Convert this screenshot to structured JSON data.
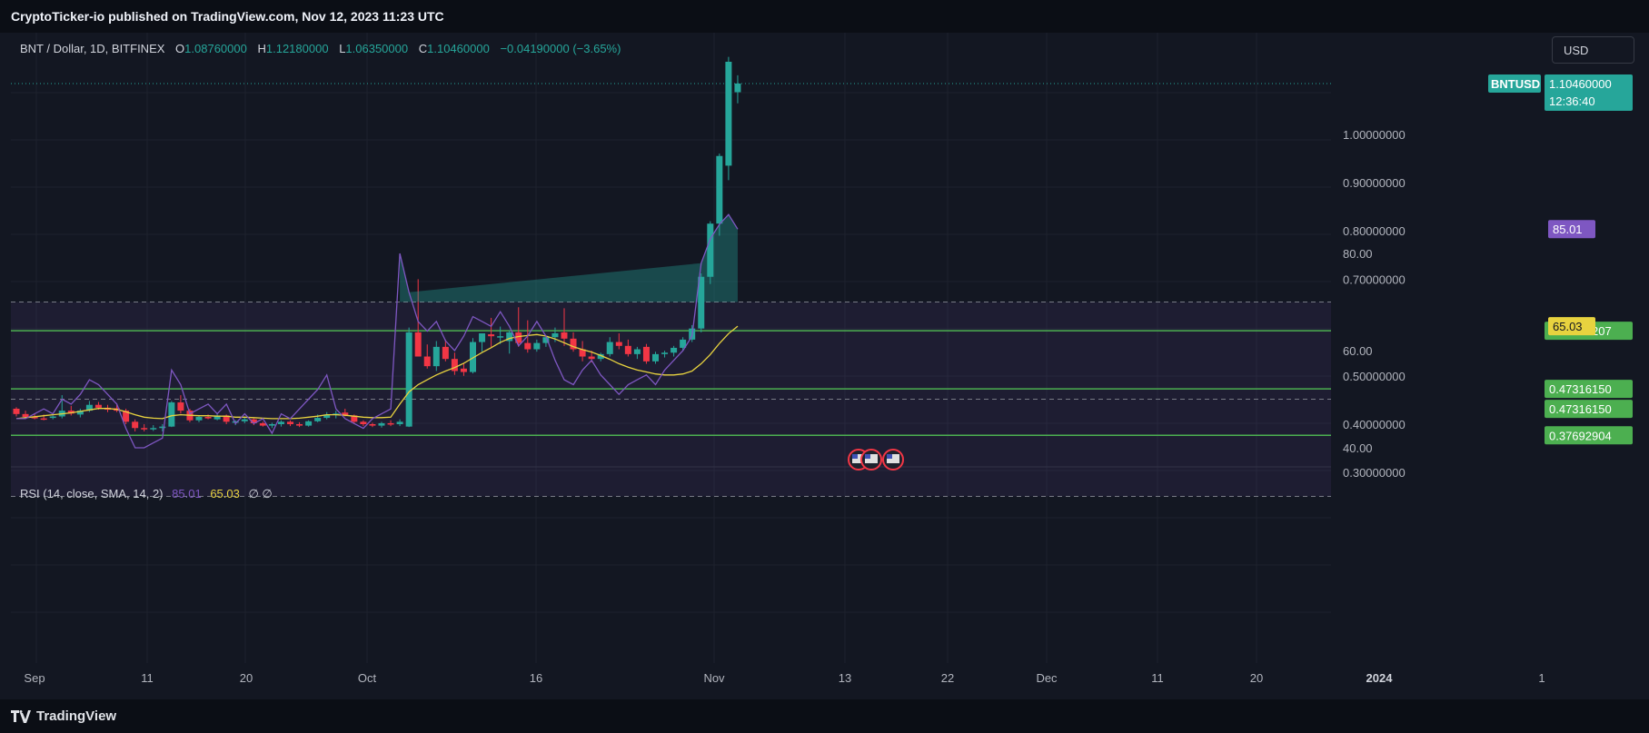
{
  "header": {
    "publisher_line": "CryptoTicker-io published on TradingView.com, Nov 12, 2023 11:23 UTC"
  },
  "footer": {
    "brand": "TradingView"
  },
  "toolbar": {
    "currency_label": "USD"
  },
  "legend": {
    "symbol": "BNT / Dollar, 1D, BITFINEX",
    "open_key": "O",
    "open": "1.08760000",
    "high_key": "H",
    "high": "1.12180000",
    "low_key": "L",
    "low": "1.06350000",
    "close_key": "C",
    "close": "1.10460000",
    "change": "−0.04190000 (−3.65%)"
  },
  "price_axis": {
    "ticks": [
      "1.00000000",
      "0.90000000",
      "0.80000000",
      "0.70000000",
      "0.50000000",
      "0.40000000",
      "0.30000000"
    ],
    "current_label": "BNTUSD",
    "current_price": "1.10460000",
    "countdown": "12:36:40",
    "level_labels": [
      "0.59345207",
      "0.47316150",
      "0.47316150",
      "0.37692904"
    ]
  },
  "rsi_panel": {
    "legend_name": "RSI (14, close, SMA, 14, 2)",
    "rsi_value": "85.01",
    "sma_value": "65.03",
    "extra": "∅ ∅",
    "axis_ticks": [
      "80.00",
      "60.00",
      "40.00"
    ]
  },
  "time_axis": {
    "labels": [
      "Sep",
      "11",
      "20",
      "Oct",
      "16",
      "Nov",
      "13",
      "22",
      "Dec",
      "11",
      "20",
      "2024",
      "1"
    ]
  },
  "colors": {
    "up": "#26a69a",
    "down": "#f23645",
    "level": "#4caf50",
    "rsi": "#7e57c2",
    "sma": "#e8d33f"
  },
  "chart_data": [
    {
      "type": "candlestick",
      "title": "BNT / Dollar, 1D, BITFINEX",
      "ylim": [
        0.3,
        1.15
      ],
      "horizontal_levels": [
        0.59345207,
        0.4731615,
        0.37692904
      ],
      "candles_ohlc": [
        [
          0.432,
          0.435,
          0.416,
          0.421
        ],
        [
          0.421,
          0.428,
          0.412,
          0.415
        ],
        [
          0.415,
          0.422,
          0.41,
          0.412
        ],
        [
          0.412,
          0.42,
          0.408,
          0.41
        ],
        [
          0.413,
          0.418,
          0.41,
          0.416
        ],
        [
          0.416,
          0.46,
          0.412,
          0.428
        ],
        [
          0.428,
          0.438,
          0.418,
          0.422
        ],
        [
          0.42,
          0.432,
          0.414,
          0.428
        ],
        [
          0.428,
          0.448,
          0.425,
          0.44
        ],
        [
          0.44,
          0.446,
          0.43,
          0.434
        ],
        [
          0.434,
          0.44,
          0.425,
          0.43
        ],
        [
          0.433,
          0.44,
          0.425,
          0.428
        ],
        [
          0.428,
          0.432,
          0.4,
          0.405
        ],
        [
          0.405,
          0.41,
          0.385,
          0.392
        ],
        [
          0.392,
          0.4,
          0.385,
          0.39
        ],
        [
          0.39,
          0.398,
          0.386,
          0.392
        ],
        [
          0.392,
          0.4,
          0.385,
          0.395
        ],
        [
          0.395,
          0.448,
          0.394,
          0.445
        ],
        [
          0.445,
          0.46,
          0.422,
          0.428
        ],
        [
          0.428,
          0.432,
          0.404,
          0.408
        ],
        [
          0.408,
          0.418,
          0.404,
          0.415
        ],
        [
          0.415,
          0.42,
          0.41,
          0.412
        ],
        [
          0.41,
          0.422,
          0.408,
          0.418
        ],
        [
          0.418,
          0.42,
          0.4,
          0.405
        ],
        [
          0.403,
          0.408,
          0.398,
          0.406
        ],
        [
          0.406,
          0.415,
          0.402,
          0.41
        ],
        [
          0.41,
          0.412,
          0.398,
          0.402
        ],
        [
          0.402,
          0.405,
          0.395,
          0.397
        ],
        [
          0.397,
          0.403,
          0.392,
          0.4
        ],
        [
          0.4,
          0.408,
          0.395,
          0.405
        ],
        [
          0.405,
          0.408,
          0.396,
          0.4
        ],
        [
          0.4,
          0.404,
          0.394,
          0.397
        ],
        [
          0.397,
          0.408,
          0.395,
          0.406
        ],
        [
          0.406,
          0.42,
          0.404,
          0.413
        ],
        [
          0.413,
          0.425,
          0.41,
          0.42
        ],
        [
          0.42,
          0.428,
          0.412,
          0.422
        ],
        [
          0.424,
          0.432,
          0.416,
          0.418
        ],
        [
          0.418,
          0.42,
          0.4,
          0.405
        ],
        [
          0.405,
          0.408,
          0.396,
          0.4
        ],
        [
          0.4,
          0.403,
          0.394,
          0.397
        ],
        [
          0.397,
          0.405,
          0.393,
          0.402
        ],
        [
          0.402,
          0.408,
          0.396,
          0.4
        ],
        [
          0.4,
          0.41,
          0.396,
          0.405
        ],
        [
          0.395,
          0.6,
          0.394,
          0.59
        ],
        [
          0.59,
          0.7,
          0.54,
          0.54
        ],
        [
          0.54,
          0.565,
          0.515,
          0.52
        ],
        [
          0.52,
          0.572,
          0.51,
          0.56
        ],
        [
          0.56,
          0.575,
          0.53,
          0.535
        ],
        [
          0.535,
          0.548,
          0.502,
          0.51
        ],
        [
          0.515,
          0.525,
          0.5,
          0.508
        ],
        [
          0.508,
          0.578,
          0.505,
          0.57
        ],
        [
          0.57,
          0.585,
          0.55,
          0.588
        ],
        [
          0.586,
          0.62,
          0.56,
          0.582
        ],
        [
          0.582,
          0.602,
          0.566,
          0.582
        ],
        [
          0.572,
          0.594,
          0.546,
          0.59
        ],
        [
          0.59,
          0.642,
          0.56,
          0.568
        ],
        [
          0.568,
          0.615,
          0.548,
          0.555
        ],
        [
          0.555,
          0.575,
          0.55,
          0.568
        ],
        [
          0.568,
          0.582,
          0.56,
          0.58
        ],
        [
          0.58,
          0.6,
          0.57,
          0.588
        ],
        [
          0.59,
          0.64,
          0.562,
          0.577
        ],
        [
          0.577,
          0.59,
          0.55,
          0.555
        ],
        [
          0.555,
          0.572,
          0.53,
          0.54
        ],
        [
          0.54,
          0.552,
          0.528,
          0.535
        ],
        [
          0.535,
          0.548,
          0.53,
          0.545
        ],
        [
          0.545,
          0.58,
          0.54,
          0.57
        ],
        [
          0.57,
          0.588,
          0.555,
          0.562
        ],
        [
          0.562,
          0.575,
          0.54,
          0.545
        ],
        [
          0.545,
          0.56,
          0.535,
          0.555
        ],
        [
          0.56,
          0.566,
          0.525,
          0.53
        ],
        [
          0.53,
          0.55,
          0.525,
          0.545
        ],
        [
          0.545,
          0.552,
          0.538,
          0.548
        ],
        [
          0.548,
          0.562,
          0.54,
          0.558
        ],
        [
          0.558,
          0.58,
          0.552,
          0.575
        ],
        [
          0.575,
          0.605,
          0.57,
          0.598
        ],
        [
          0.598,
          0.712,
          0.59,
          0.705
        ],
        [
          0.705,
          0.82,
          0.69,
          0.815
        ],
        [
          0.815,
          0.96,
          0.79,
          0.955
        ],
        [
          0.935,
          1.16,
          0.905,
          1.15
        ],
        [
          1.087,
          1.122,
          1.064,
          1.105
        ]
      ]
    },
    {
      "type": "line",
      "title": "RSI (14, close, SMA, 14, 2)",
      "ylim": [
        30,
        90
      ],
      "bands": [
        70,
        50,
        30
      ],
      "series": [
        {
          "name": "RSI",
          "values": [
            46,
            46,
            47,
            48,
            47,
            50,
            49,
            51,
            54,
            53,
            51,
            49,
            44,
            40,
            40,
            41,
            42,
            56,
            53,
            47,
            48,
            49,
            47,
            49,
            45,
            47,
            45,
            46,
            43,
            47,
            46,
            48,
            50,
            52,
            55,
            48,
            46,
            45,
            44,
            46,
            47,
            48,
            80,
            72,
            66,
            64,
            66,
            62,
            60,
            63,
            67,
            66,
            65,
            68,
            65,
            61,
            63,
            66,
            63,
            58,
            54,
            53,
            56,
            58,
            55,
            53,
            51,
            53,
            54,
            55,
            53,
            56,
            58,
            60,
            63,
            78,
            83,
            86,
            88,
            85
          ]
        },
        {
          "name": "RSI-based MA",
          "values": [
            46,
            46.2,
            46.4,
            46.6,
            46.8,
            47,
            47.2,
            47.5,
            47.8,
            48.1,
            48.1,
            47.9,
            47.4,
            46.8,
            46.3,
            46.1,
            46,
            46.6,
            46.8,
            46.7,
            46.6,
            46.6,
            46.5,
            46.5,
            46.3,
            46.3,
            46.2,
            46.1,
            46.0,
            46.0,
            46.0,
            46.1,
            46.3,
            46.5,
            46.8,
            46.8,
            46.7,
            46.5,
            46.3,
            46.2,
            46.2,
            46.3,
            49,
            51.5,
            53,
            54,
            55,
            55.8,
            56.5,
            57.4,
            58.5,
            59.6,
            60.6,
            61.7,
            62.5,
            62.9,
            63.1,
            63.3,
            63.0,
            62.4,
            61.6,
            60.8,
            60.2,
            59.7,
            59.0,
            58.2,
            57.3,
            56.6,
            56.0,
            55.6,
            55.2,
            55.0,
            55.0,
            55.2,
            55.8,
            57.3,
            59.2,
            61.5,
            63.5,
            65.03
          ]
        }
      ]
    }
  ]
}
